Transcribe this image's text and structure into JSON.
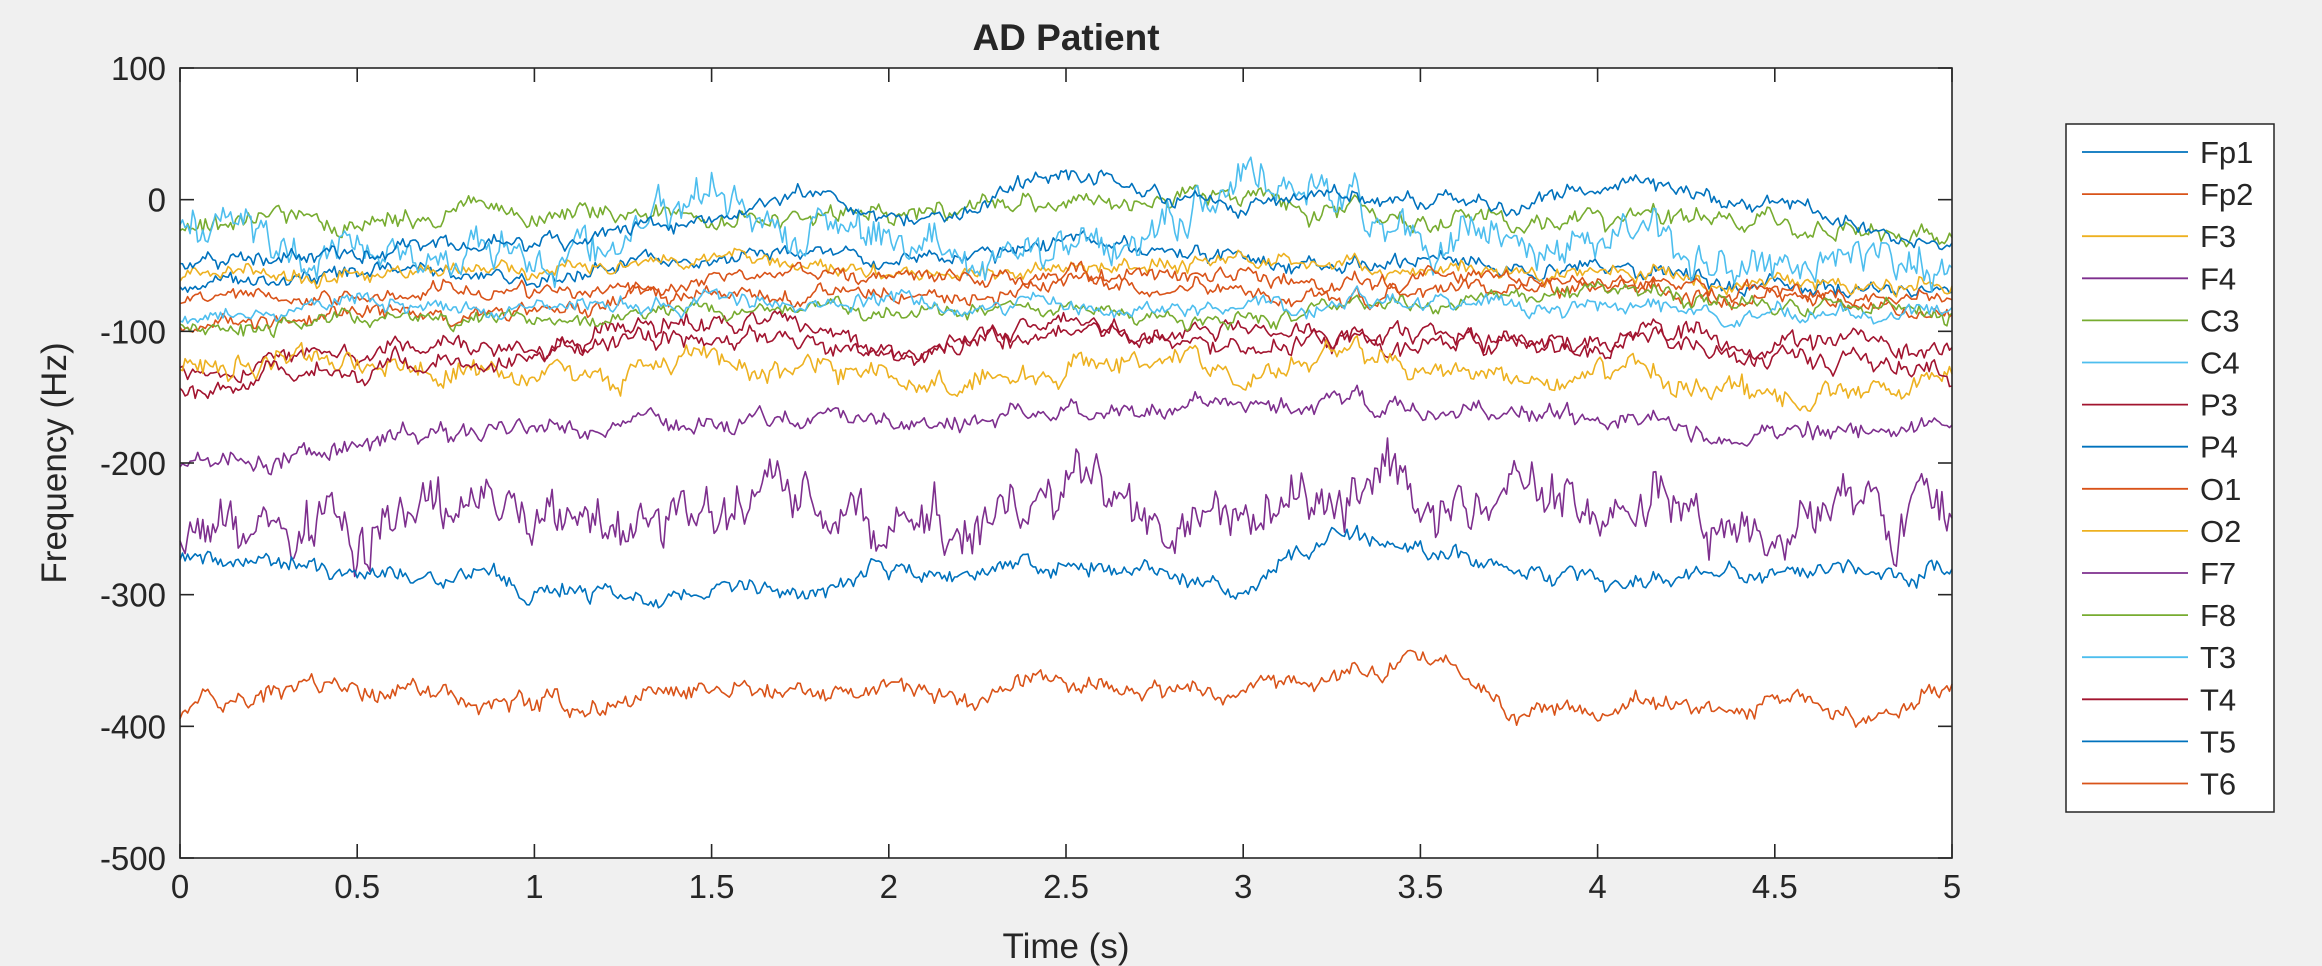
{
  "chart_data": {
    "type": "line",
    "title": "AD Patient",
    "xlabel": "Time (s)",
    "ylabel": "Frequency (Hz)",
    "xlim": [
      0,
      5
    ],
    "ylim": [
      -500,
      100
    ],
    "xticks": [
      0,
      0.5,
      1,
      1.5,
      2,
      2.5,
      3,
      3.5,
      4,
      4.5,
      5
    ],
    "xtick_labels": [
      "0",
      "0.5",
      "1",
      "1.5",
      "2",
      "2.5",
      "3",
      "3.5",
      "4",
      "4.5",
      "5"
    ],
    "yticks": [
      100,
      0,
      -100,
      -200,
      -300,
      -400,
      -500
    ],
    "ytick_labels": [
      "100",
      "0",
      "-100",
      "-200",
      "-300",
      "-400",
      "-500"
    ],
    "grid": false,
    "legend_position": "outside-right",
    "x": [
      0,
      0.25,
      0.5,
      0.75,
      1,
      1.25,
      1.5,
      1.75,
      2,
      2.25,
      2.5,
      2.75,
      3,
      3.25,
      3.5,
      3.75,
      4,
      4.25,
      4.5,
      4.75,
      5
    ],
    "series": [
      {
        "name": "Fp1",
        "color": "#0072BD",
        "noise": 8,
        "values": [
          -65,
          -60,
          -55,
          -58,
          -62,
          -50,
          -45,
          -40,
          -42,
          -38,
          -35,
          -40,
          -45,
          -50,
          -48,
          -52,
          -55,
          -60,
          -65,
          -70,
          -60
        ]
      },
      {
        "name": "Fp2",
        "color": "#D95319",
        "noise": 8,
        "values": [
          -95,
          -90,
          -85,
          -88,
          -82,
          -80,
          -70,
          -75,
          -72,
          -68,
          -60,
          -65,
          -70,
          -75,
          -72,
          -70,
          -68,
          -72,
          -75,
          -80,
          -85
        ]
      },
      {
        "name": "F3",
        "color": "#EDB120",
        "noise": 8,
        "values": [
          -60,
          -58,
          -55,
          -52,
          -50,
          -48,
          -45,
          -50,
          -52,
          -55,
          -50,
          -48,
          -45,
          -50,
          -52,
          -55,
          -58,
          -60,
          -62,
          -65,
          -62
        ]
      },
      {
        "name": "F4",
        "color": "#7E2F8E",
        "noise": 10,
        "values": [
          -200,
          -195,
          -185,
          -180,
          -175,
          -180,
          -170,
          -165,
          -170,
          -165,
          -160,
          -155,
          -165,
          -150,
          -160,
          -165,
          -170,
          -175,
          -180,
          -175,
          -170
        ]
      },
      {
        "name": "C3",
        "color": "#77AC30",
        "noise": 10,
        "values": [
          -20,
          -15,
          -18,
          -15,
          -10,
          -12,
          -15,
          -8,
          -10,
          -5,
          0,
          -5,
          5,
          -10,
          -15,
          -20,
          -18,
          -15,
          -20,
          -25,
          -20
        ]
      },
      {
        "name": "C4",
        "color": "#4DBEEE",
        "noise": 20,
        "values": [
          -25,
          -30,
          -35,
          -40,
          -30,
          -35,
          5,
          -30,
          -25,
          -35,
          -30,
          -20,
          25,
          -5,
          -30,
          -25,
          -35,
          -40,
          -45,
          -50,
          -50
        ]
      },
      {
        "name": "P3",
        "color": "#A2142F",
        "noise": 10,
        "values": [
          -130,
          -120,
          -110,
          -105,
          -110,
          -100,
          -95,
          -100,
          -110,
          -100,
          -90,
          -105,
          -95,
          -110,
          -115,
          -100,
          -110,
          -105,
          -115,
          -110,
          -110
        ]
      },
      {
        "name": "P4",
        "color": "#0072BD",
        "noise": 8,
        "values": [
          -50,
          -45,
          -40,
          -35,
          -30,
          -25,
          -15,
          5,
          -15,
          -5,
          25,
          10,
          -10,
          5,
          0,
          -5,
          10,
          5,
          -5,
          -20,
          -40
        ]
      },
      {
        "name": "O1",
        "color": "#D95319",
        "noise": 8,
        "values": [
          -80,
          -75,
          -70,
          -68,
          -72,
          -65,
          -60,
          -55,
          -58,
          -60,
          -55,
          -58,
          -60,
          -65,
          -62,
          -60,
          -62,
          -65,
          -68,
          -72,
          -75
        ]
      },
      {
        "name": "O2",
        "color": "#EDB120",
        "noise": 12,
        "values": [
          -130,
          -125,
          -120,
          -130,
          -135,
          -140,
          -125,
          -130,
          -140,
          -135,
          -130,
          -120,
          -135,
          -115,
          -125,
          -140,
          -130,
          -145,
          -150,
          -145,
          -130
        ]
      },
      {
        "name": "F7",
        "color": "#7E2F8E",
        "noise": 28,
        "values": [
          -260,
          -250,
          -255,
          -245,
          -240,
          -250,
          -235,
          -230,
          -240,
          -235,
          -230,
          -240,
          -225,
          -230,
          -235,
          -230,
          -225,
          -240,
          -235,
          -245,
          -240
        ]
      },
      {
        "name": "F8",
        "color": "#77AC30",
        "noise": 8,
        "values": [
          -100,
          -95,
          -90,
          -92,
          -85,
          -90,
          -85,
          -80,
          -85,
          -82,
          -80,
          -85,
          -90,
          -85,
          -80,
          -75,
          -70,
          -75,
          -80,
          -85,
          -90
        ]
      },
      {
        "name": "T3",
        "color": "#4DBEEE",
        "noise": 8,
        "values": [
          -90,
          -85,
          -80,
          -82,
          -78,
          -80,
          -75,
          -80,
          -78,
          -82,
          -80,
          -85,
          -82,
          -80,
          -78,
          -80,
          -82,
          -85,
          -88,
          -90,
          -85
        ]
      },
      {
        "name": "T4",
        "color": "#A2142F",
        "noise": 10,
        "values": [
          -140,
          -130,
          -125,
          -120,
          -115,
          -110,
          -108,
          -110,
          -115,
          -105,
          -100,
          -105,
          -110,
          -105,
          -100,
          -105,
          -110,
          -115,
          -120,
          -125,
          -130
        ]
      },
      {
        "name": "T5",
        "color": "#0072BD",
        "noise": 10,
        "values": [
          -270,
          -280,
          -285,
          -290,
          -295,
          -300,
          -290,
          -295,
          -280,
          -285,
          -275,
          -280,
          -300,
          -260,
          -265,
          -280,
          -290,
          -285,
          -280,
          -285,
          -275
        ]
      },
      {
        "name": "T6",
        "color": "#D95319",
        "noise": 10,
        "values": [
          -390,
          -375,
          -370,
          -375,
          -380,
          -385,
          -370,
          -375,
          -370,
          -375,
          -365,
          -370,
          -375,
          -360,
          -345,
          -385,
          -390,
          -385,
          -380,
          -390,
          -375
        ]
      }
    ]
  }
}
